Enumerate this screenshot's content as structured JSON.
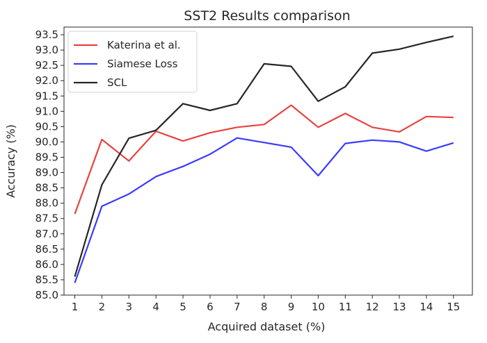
{
  "chart_data": {
    "type": "line",
    "title": "SST2 Results comparison",
    "xlabel": "Acquired dataset (%)",
    "ylabel": "Accuracy (%)",
    "x": [
      1,
      2,
      3,
      4,
      5,
      6,
      7,
      8,
      9,
      10,
      11,
      12,
      13,
      14,
      15
    ],
    "xlim": [
      0.6,
      15.7
    ],
    "ylim": [
      85.0,
      93.75
    ],
    "yticks": [
      85.0,
      85.5,
      86.0,
      86.5,
      87.0,
      87.5,
      88.0,
      88.5,
      89.0,
      89.5,
      90.0,
      90.5,
      91.0,
      91.5,
      92.0,
      92.5,
      93.0,
      93.5
    ],
    "ytick_labels": [
      "85.0",
      "85.5",
      "86.0",
      "86.5",
      "87.0",
      "87.5",
      "88.0",
      "88.5",
      "89.0",
      "89.5",
      "90.0",
      "90.5",
      "91.0",
      "91.5",
      "92.0",
      "92.5",
      "93.0",
      "93.5"
    ],
    "xtick_labels": [
      "1",
      "2",
      "3",
      "4",
      "5",
      "6",
      "7",
      "8",
      "9",
      "10",
      "11",
      "12",
      "13",
      "14",
      "15"
    ],
    "grid": false,
    "legend_position": "top-left",
    "series": [
      {
        "name": "Katerina et al.",
        "color": "#e8423f",
        "values": [
          87.65,
          90.08,
          89.38,
          90.35,
          90.03,
          90.3,
          90.48,
          90.57,
          91.2,
          90.48,
          90.93,
          90.48,
          90.33,
          90.83,
          90.8
        ]
      },
      {
        "name": "Siamese Loss",
        "color": "#3a3aff",
        "values": [
          85.4,
          87.9,
          88.3,
          88.87,
          89.2,
          89.6,
          90.13,
          89.98,
          89.83,
          88.9,
          89.95,
          90.06,
          90.0,
          89.7,
          89.97
        ]
      },
      {
        "name": "SCL",
        "color": "#262626",
        "values": [
          85.6,
          88.6,
          90.12,
          90.38,
          91.25,
          91.03,
          91.25,
          92.55,
          92.47,
          91.33,
          91.8,
          92.9,
          93.03,
          93.25,
          93.45
        ]
      }
    ]
  }
}
